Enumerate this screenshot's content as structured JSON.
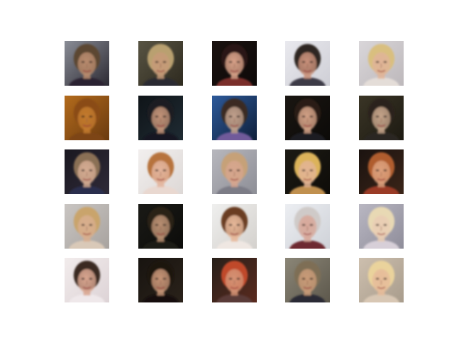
{
  "figure": {
    "rows": 5,
    "cols": 5,
    "samples": [
      {
        "bg": "#8a8d96",
        "bg2": "#2c2a33",
        "skin": "#b88b6e",
        "hair": "#5b4632",
        "shirt": "#2a2230"
      },
      {
        "bg": "#585443",
        "bg2": "#2e2a1f",
        "skin": "#c69a78",
        "hair": "#b9a070",
        "shirt": "#2a2a33"
      },
      {
        "bg": "#1a1210",
        "bg2": "#0d0908",
        "skin": "#d7a188",
        "hair": "#2a1812",
        "shirt": "#7a2f2a"
      },
      {
        "bg": "#e9e9ee",
        "bg2": "#cfcfd6",
        "skin": "#c8907a",
        "hair": "#2f2822",
        "shirt": "#3d3a46"
      },
      {
        "bg": "#d9d6d9",
        "bg2": "#bdb8bb",
        "skin": "#e0b498",
        "hair": "#d9bf7f",
        "shirt": "#e4ddd8"
      },
      {
        "bg": "#b36b1c",
        "bg2": "#6a3a10",
        "skin": "#c27a2e",
        "hair": "#8a4c16",
        "shirt": "#7d4412"
      },
      {
        "bg": "#0f1418",
        "bg2": "#1f2b33",
        "skin": "#c29378",
        "hair": "#1c1c20",
        "shirt": "#141821"
      },
      {
        "bg": "#2d5a9a",
        "bg2": "#0f1f3a",
        "skin": "#c0a08c",
        "hair": "#3a2c24",
        "shirt": "#6f5a9a"
      },
      {
        "bg": "#1a1612",
        "bg2": "#0c0a08",
        "skin": "#d2a186",
        "hair": "#2a1c14",
        "shirt": "#1a1a22"
      },
      {
        "bg": "#3a3526",
        "bg2": "#1d1a12",
        "skin": "#c5a48a",
        "hair": "#2c241a",
        "shirt": "#2a2622"
      },
      {
        "bg": "#1a1820",
        "bg2": "#2f2a38",
        "skin": "#d4ab92",
        "hair": "#8a7054",
        "shirt": "#2b2f4d"
      },
      {
        "bg": "#f2efee",
        "bg2": "#ddd8d6",
        "skin": "#e3b49c",
        "hair": "#b7733e",
        "shirt": "#e9d8d0"
      },
      {
        "bg": "#b7b7bd",
        "bg2": "#8d8e96",
        "skin": "#d6a68e",
        "hair": "#c6a178",
        "shirt": "#7c7b86"
      },
      {
        "bg": "#1c1a14",
        "bg2": "#0e0c08",
        "skin": "#e2b493",
        "hair": "#dcb35a",
        "shirt": "#c09050"
      },
      {
        "bg": "#1b1310",
        "bg2": "#3a2418",
        "skin": "#dca07c",
        "hair": "#b05d2e",
        "shirt": "#9a3b25"
      },
      {
        "bg": "#c9c5c2",
        "bg2": "#a8a39f",
        "skin": "#d8ae8e",
        "hair": "#c9a46c",
        "shirt": "#d9c9b8"
      },
      {
        "bg": "#1a1a16",
        "bg2": "#0c0c0a",
        "skin": "#b98f72",
        "hair": "#2a2218",
        "shirt": "#1d1c18"
      },
      {
        "bg": "#efefee",
        "bg2": "#d4d1cd",
        "skin": "#e6b89a",
        "hair": "#6a3d22",
        "shirt": "#efe7e2"
      },
      {
        "bg": "#eceef2",
        "bg2": "#cfd2d8",
        "skin": "#d8a89a",
        "hair": "#cfcac8",
        "shirt": "#6e2a33"
      },
      {
        "bg": "#b9b7c2",
        "bg2": "#8f8d9a",
        "skin": "#e9cdb4",
        "hair": "#e8d9b4",
        "shirt": "#d7cfd8"
      },
      {
        "bg": "#f2ecec",
        "bg2": "#ddd3d6",
        "skin": "#d9a690",
        "hair": "#3a2a24",
        "shirt": "#efe8ea"
      },
      {
        "bg": "#181410",
        "bg2": "#2a221a",
        "skin": "#c69476",
        "hair": "#1b1410",
        "shirt": "#121010"
      },
      {
        "bg": "#27201a",
        "bg2": "#5a2a1e",
        "skin": "#d49274",
        "hair": "#c0482a",
        "shirt": "#5a3a38"
      },
      {
        "bg": "#8b8677",
        "bg2": "#5d584c",
        "skin": "#c99b78",
        "hair": "#7e6e55",
        "shirt": "#2c2c36"
      },
      {
        "bg": "#cdbfae",
        "bg2": "#a89c8c",
        "skin": "#e6bc9a",
        "hair": "#ead39c",
        "shirt": "#d8c7b4"
      }
    ]
  }
}
